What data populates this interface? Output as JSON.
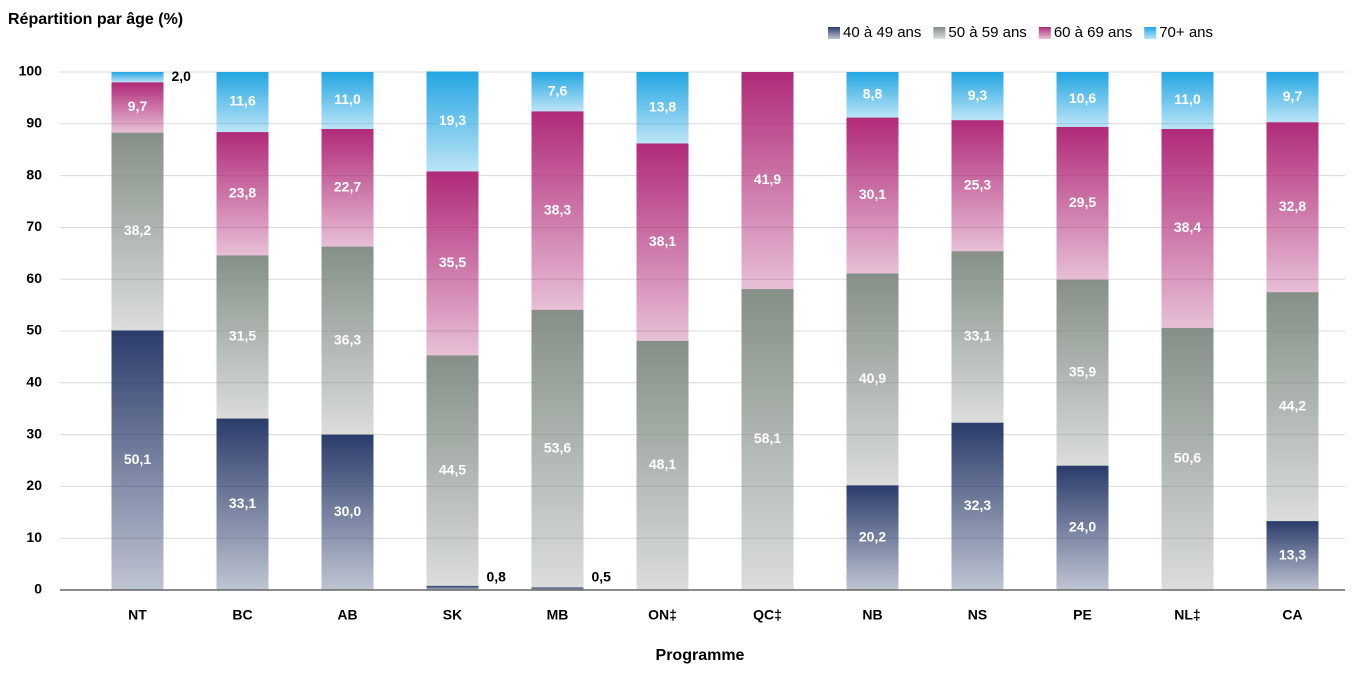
{
  "chart_data": {
    "type": "stacked_bar",
    "title": "Répartition par âge (%)",
    "x_label": "Programme",
    "categories": [
      "NT",
      "BC",
      "AB",
      "SK",
      "MB",
      "ON‡",
      "QC‡",
      "NB",
      "NS",
      "PE",
      "NL‡",
      "CA"
    ],
    "series": [
      {
        "name": "40 à 49 ans",
        "color": "#2b3c6b",
        "values": [
          50.1,
          33.1,
          30.0,
          0.8,
          0.5,
          null,
          null,
          20.2,
          32.3,
          24.0,
          null,
          13.3
        ],
        "value_labels": [
          "50,1",
          "33,1",
          "30,0",
          "0,8",
          "0,5",
          null,
          null,
          "20,2",
          "32,3",
          "24,0",
          null,
          "13,3"
        ]
      },
      {
        "name": "50 à 59 ans",
        "color": "#858f87",
        "values": [
          38.2,
          31.5,
          36.3,
          44.5,
          53.6,
          48.1,
          58.1,
          40.9,
          33.1,
          35.9,
          50.6,
          44.2
        ],
        "value_labels": [
          "38,2",
          "31,5",
          "36,3",
          "44,5",
          "53,6",
          "48,1",
          "58,1",
          "40,9",
          "33,1",
          "35,9",
          "50,6",
          "44,2"
        ]
      },
      {
        "name": "60 à 69 ans",
        "color": "#b02a78",
        "values": [
          9.7,
          23.8,
          22.7,
          35.5,
          38.3,
          38.1,
          41.9,
          30.1,
          25.3,
          29.5,
          38.4,
          32.8
        ],
        "value_labels": [
          "9,7",
          "23,8",
          "22,7",
          "35,5",
          "38,3",
          "38,1",
          "41,9",
          "30,1",
          "25,3",
          "29,5",
          "38,4",
          "32,8"
        ]
      },
      {
        "name": "70+ ans",
        "color": "#22a6e2",
        "values": [
          2.0,
          11.6,
          11.0,
          19.3,
          7.6,
          13.8,
          null,
          8.8,
          9.3,
          10.6,
          11.0,
          9.7
        ],
        "value_labels": [
          "2,0",
          "11,6",
          "11,0",
          "19,3",
          "7,6",
          "13,8",
          null,
          "8,8",
          "9,3",
          "10,6",
          "11,0",
          "9,7"
        ]
      }
    ],
    "ylim": [
      0,
      100
    ],
    "yticks": [
      0,
      10,
      20,
      30,
      40,
      50,
      60,
      70,
      80,
      90,
      100
    ],
    "grid": true,
    "legend": "top-right"
  }
}
